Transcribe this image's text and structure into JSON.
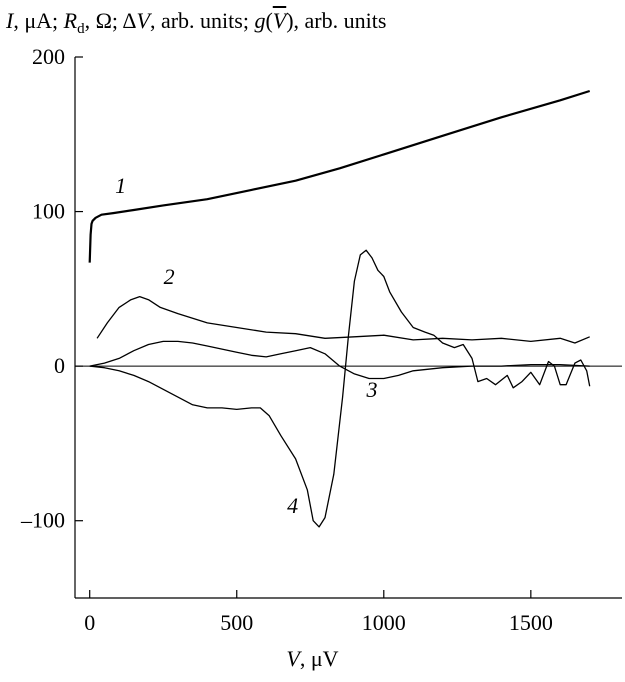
{
  "chart_data": {
    "type": "line",
    "ylabel_parts": {
      "i_sym": "I",
      "i_unit": ", μA; ",
      "r_sym": "R",
      "r_sub": "d",
      "r_unit": ", Ω; Δ",
      "v_sym": "V",
      "v_unit": ", arb. units; ",
      "g_sym": "g",
      "g_open": "(",
      "g_arg": "V",
      "g_close": ")",
      "g_unit": ", arb. units"
    },
    "xlabel_parts": {
      "sym": "V",
      "unit": ", μV"
    },
    "xlim": [
      -50,
      1810
    ],
    "ylim": [
      -150,
      200
    ],
    "xticks": [
      0,
      500,
      1000,
      1500
    ],
    "yticks": [
      -100,
      0,
      100,
      200
    ],
    "xtick_labels": [
      "0",
      "500",
      "1000",
      "1500"
    ],
    "ytick_labels": [
      "–100",
      "0",
      "100",
      "200"
    ],
    "grid": false,
    "zero_line": true,
    "series": [
      {
        "name": "1",
        "x": [
          0,
          3,
          6,
          10,
          20,
          40,
          80,
          150,
          250,
          400,
          550,
          700,
          850,
          1000,
          1200,
          1400,
          1600,
          1700
        ],
        "y": [
          67,
          85,
          92,
          94,
          96,
          98,
          99,
          101,
          104,
          108,
          114,
          120,
          128,
          137,
          149,
          161,
          172,
          178
        ]
      },
      {
        "name": "2",
        "x": [
          25,
          60,
          100,
          140,
          170,
          200,
          240,
          300,
          400,
          500,
          600,
          700,
          800,
          900,
          1000,
          1100,
          1200,
          1300,
          1400,
          1500,
          1600,
          1650,
          1700
        ],
        "y": [
          18,
          28,
          38,
          43,
          45,
          43,
          38,
          34,
          28,
          25,
          22,
          21,
          18,
          19,
          20,
          17,
          18,
          17,
          18,
          16,
          18,
          15,
          19
        ]
      },
      {
        "name": "3",
        "x": [
          0,
          50,
          100,
          150,
          200,
          250,
          300,
          350,
          400,
          450,
          500,
          550,
          600,
          650,
          700,
          750,
          800,
          850,
          900,
          950,
          1000,
          1050,
          1100,
          1200,
          1300,
          1400,
          1500,
          1600,
          1700
        ],
        "y": [
          0,
          2,
          5,
          10,
          14,
          16,
          16,
          15,
          13,
          11,
          9,
          7,
          6,
          8,
          10,
          12,
          8,
          0,
          -5,
          -8,
          -8,
          -6,
          -3,
          -1,
          0,
          0,
          1,
          1,
          0
        ]
      },
      {
        "name": "4",
        "x": [
          0,
          50,
          100,
          150,
          200,
          250,
          300,
          350,
          400,
          450,
          500,
          550,
          580,
          610,
          650,
          700,
          740,
          760,
          780,
          800,
          830,
          860,
          880,
          900,
          920,
          940,
          960,
          980,
          1000,
          1020,
          1060,
          1100,
          1140,
          1170,
          1200,
          1240,
          1270,
          1300,
          1320,
          1350,
          1380,
          1420,
          1440,
          1470,
          1500,
          1530,
          1560,
          1580,
          1600,
          1620,
          1650,
          1670,
          1690,
          1700
        ],
        "y": [
          0,
          -1,
          -3,
          -6,
          -10,
          -15,
          -20,
          -25,
          -27,
          -27,
          -28,
          -27,
          -27,
          -32,
          -45,
          -60,
          -80,
          -100,
          -104,
          -98,
          -70,
          -20,
          20,
          55,
          72,
          75,
          70,
          62,
          58,
          48,
          35,
          25,
          22,
          20,
          15,
          12,
          14,
          5,
          -10,
          -8,
          -12,
          -6,
          -14,
          -10,
          -4,
          -12,
          3,
          0,
          -12,
          -12,
          2,
          4,
          -3,
          -13
        ]
      }
    ],
    "labels": [
      {
        "text": "1",
        "x": 105,
        "y": 112
      },
      {
        "text": "2",
        "x": 270,
        "y": 53
      },
      {
        "text": "3",
        "x": 960,
        "y": -20
      },
      {
        "text": "4",
        "x": 690,
        "y": -95
      }
    ]
  }
}
